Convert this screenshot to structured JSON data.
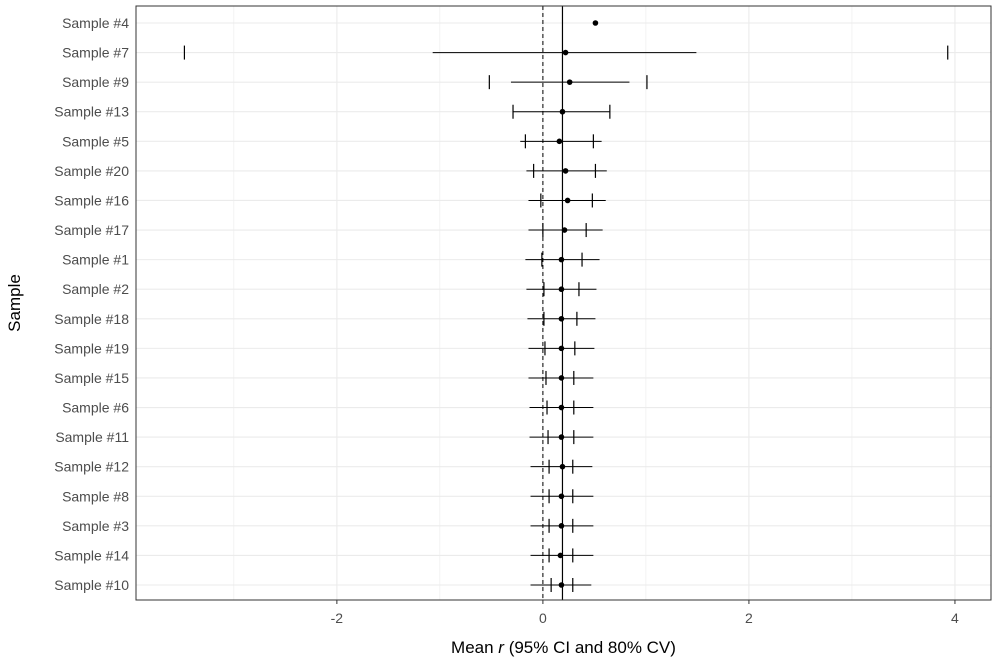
{
  "chart_data": {
    "type": "forest",
    "xlabel_prefix": "Mean ",
    "xlabel_var": "r",
    "xlabel_suffix": " (95% CI and 80% CV)",
    "ylabel": "Sample",
    "xlim": [
      -3.95,
      4.35
    ],
    "x_ticks": [
      -2,
      0,
      2,
      4
    ],
    "x_tick_labels": [
      "-2",
      "0",
      "2",
      "4"
    ],
    "grid": true,
    "reference_line_dashed": 0,
    "mean_line": 0.19,
    "rows": [
      {
        "label": "Sample #4",
        "mean": 0.51,
        "ci": null,
        "cv": null
      },
      {
        "label": "Sample #7",
        "mean": 0.22,
        "ci": [
          -1.07,
          1.49
        ],
        "cv": [
          -3.48,
          3.93
        ]
      },
      {
        "label": "Sample #9",
        "mean": 0.26,
        "ci": [
          -0.31,
          0.84
        ],
        "cv": [
          -0.52,
          1.01
        ]
      },
      {
        "label": "Sample #13",
        "mean": 0.19,
        "ci": [
          -0.29,
          0.65
        ],
        "cv": [
          -0.29,
          0.65
        ]
      },
      {
        "label": "Sample #5",
        "mean": 0.16,
        "ci": [
          -0.22,
          0.57
        ],
        "cv": [
          -0.17,
          0.49
        ]
      },
      {
        "label": "Sample #20",
        "mean": 0.22,
        "ci": [
          -0.16,
          0.62
        ],
        "cv": [
          -0.09,
          0.51
        ]
      },
      {
        "label": "Sample #16",
        "mean": 0.24,
        "ci": [
          -0.14,
          0.61
        ],
        "cv": [
          -0.02,
          0.48
        ]
      },
      {
        "label": "Sample #17",
        "mean": 0.21,
        "ci": [
          -0.14,
          0.58
        ],
        "cv": [
          0.0,
          0.42
        ]
      },
      {
        "label": "Sample #1",
        "mean": 0.18,
        "ci": [
          -0.17,
          0.55
        ],
        "cv": [
          -0.01,
          0.38
        ]
      },
      {
        "label": "Sample #2",
        "mean": 0.18,
        "ci": [
          -0.16,
          0.52
        ],
        "cv": [
          0.01,
          0.35
        ]
      },
      {
        "label": "Sample #18",
        "mean": 0.18,
        "ci": [
          -0.15,
          0.51
        ],
        "cv": [
          0.01,
          0.33
        ]
      },
      {
        "label": "Sample #19",
        "mean": 0.18,
        "ci": [
          -0.14,
          0.5
        ],
        "cv": [
          0.02,
          0.31
        ]
      },
      {
        "label": "Sample #15",
        "mean": 0.18,
        "ci": [
          -0.14,
          0.49
        ],
        "cv": [
          0.03,
          0.3
        ]
      },
      {
        "label": "Sample #6",
        "mean": 0.18,
        "ci": [
          -0.13,
          0.49
        ],
        "cv": [
          0.04,
          0.3
        ]
      },
      {
        "label": "Sample #11",
        "mean": 0.18,
        "ci": [
          -0.13,
          0.49
        ],
        "cv": [
          0.05,
          0.3
        ]
      },
      {
        "label": "Sample #12",
        "mean": 0.19,
        "ci": [
          -0.12,
          0.48
        ],
        "cv": [
          0.06,
          0.29
        ]
      },
      {
        "label": "Sample #8",
        "mean": 0.18,
        "ci": [
          -0.12,
          0.49
        ],
        "cv": [
          0.06,
          0.29
        ]
      },
      {
        "label": "Sample #3",
        "mean": 0.18,
        "ci": [
          -0.12,
          0.49
        ],
        "cv": [
          0.06,
          0.29
        ]
      },
      {
        "label": "Sample #14",
        "mean": 0.17,
        "ci": [
          -0.12,
          0.49
        ],
        "cv": [
          0.06,
          0.29
        ]
      },
      {
        "label": "Sample #10",
        "mean": 0.18,
        "ci": [
          -0.12,
          0.47
        ],
        "cv": [
          0.08,
          0.29
        ]
      }
    ]
  }
}
